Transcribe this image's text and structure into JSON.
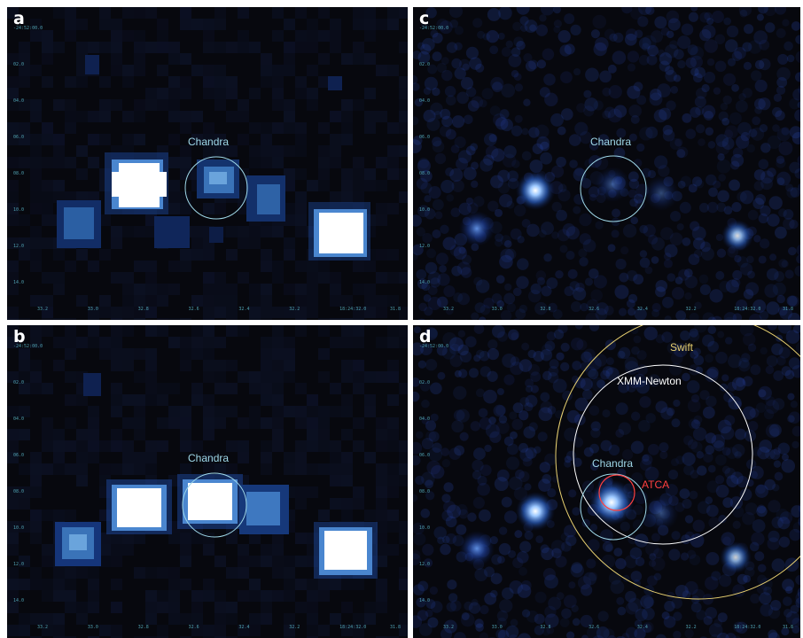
{
  "panels": [
    {
      "letter": "a",
      "style": "pixel",
      "labels": [
        {
          "text": "Chandra",
          "color": "#9fd8e8"
        }
      ],
      "y_ticks": [
        "-24:52:00.0",
        "02.0",
        "04.0",
        "06.0",
        "08.0",
        "10.0",
        "12.0",
        "14.0"
      ],
      "x_ticks": [
        "33.2",
        "33.0",
        "32.8",
        "32.6",
        "32.4",
        "32.2",
        "18:24:32.0",
        "31.8"
      ]
    },
    {
      "letter": "c",
      "style": "smooth",
      "labels": [
        {
          "text": "Chandra",
          "color": "#9fd8e8"
        }
      ],
      "y_ticks": [
        "-24:52:00.0",
        "02.0",
        "04.0",
        "06.0",
        "08.0",
        "10.0",
        "12.0",
        "14.0"
      ],
      "x_ticks": [
        "33.2",
        "33.0",
        "32.8",
        "32.6",
        "32.4",
        "32.2",
        "18:24:32.0",
        "31.8"
      ]
    },
    {
      "letter": "b",
      "style": "pixel",
      "labels": [
        {
          "text": "Chandra",
          "color": "#9fd8e8"
        }
      ],
      "y_ticks": [
        "-24:52:00.0",
        "02.0",
        "04.0",
        "06.0",
        "08.0",
        "10.0",
        "12.0",
        "14.0"
      ],
      "x_ticks": [
        "33.2",
        "33.0",
        "32.8",
        "32.6",
        "32.4",
        "32.2",
        "18:24:32.0",
        "31.8"
      ]
    },
    {
      "letter": "d",
      "style": "smooth",
      "labels": [
        {
          "text": "Swift",
          "color": "#e8d070"
        },
        {
          "text": "XMM-Newton",
          "color": "#ffffff"
        },
        {
          "text": "Chandra",
          "color": "#9fd8e8"
        },
        {
          "text": "ATCA",
          "color": "#ff4040"
        }
      ],
      "y_ticks": [
        "-24:52:00.0",
        "02.0",
        "04.0",
        "06.0",
        "08.0",
        "10.0",
        "12.0",
        "14.0"
      ],
      "x_ticks": [
        "33.2",
        "33.0",
        "32.8",
        "32.6",
        "32.4",
        "32.2",
        "18:24:32.0",
        "31.8"
      ]
    }
  ],
  "colors": {
    "background": "#07080e",
    "chandra_circle": "#9fd8e8",
    "xmm_circle": "#ffffff",
    "swift_circle": "#e8d070",
    "atca_circle": "#ff4040",
    "tick_text": "#4fa0b0"
  }
}
